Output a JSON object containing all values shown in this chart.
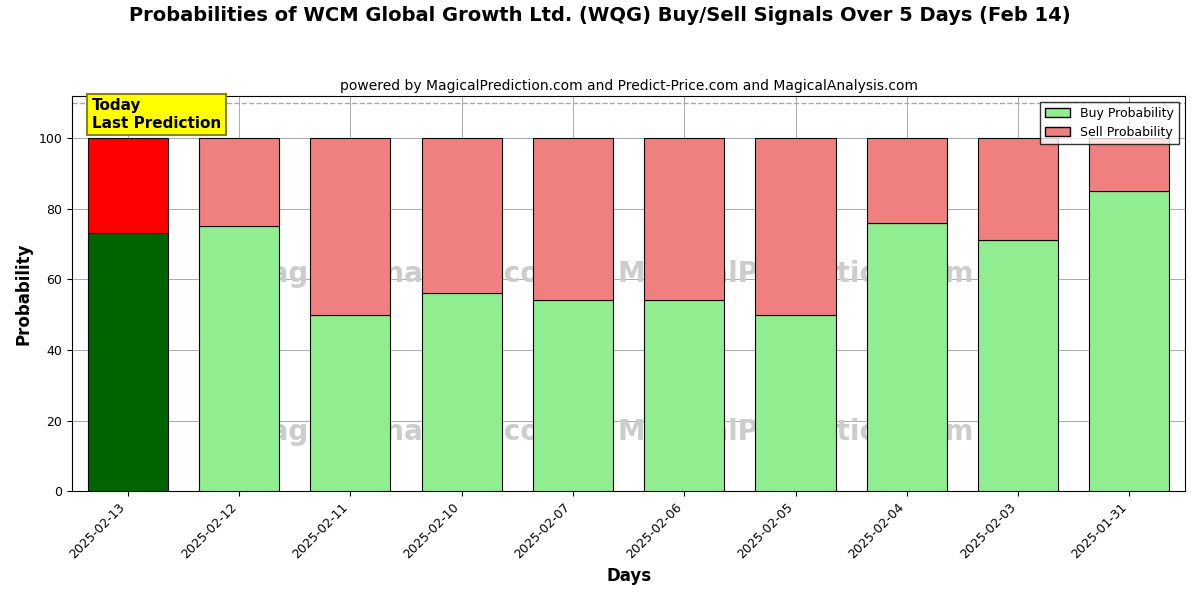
{
  "title": "Probabilities of WCM Global Growth Ltd. (WQG) Buy/Sell Signals Over 5 Days (Feb 14)",
  "subtitle": "powered by MagicalPrediction.com and Predict-Price.com and MagicalAnalysis.com",
  "xlabel": "Days",
  "ylabel": "Probability",
  "ylim": [
    0,
    112
  ],
  "yticks": [
    0,
    20,
    40,
    60,
    80,
    100
  ],
  "dashed_line_y": 110,
  "categories": [
    "2025-02-13",
    "2025-02-12",
    "2025-02-11",
    "2025-02-10",
    "2025-02-07",
    "2025-02-06",
    "2025-02-05",
    "2025-02-04",
    "2025-02-03",
    "2025-01-31"
  ],
  "buy_values": [
    73,
    75,
    50,
    56,
    54,
    54,
    50,
    76,
    71,
    85
  ],
  "sell_values": [
    27,
    25,
    50,
    44,
    46,
    46,
    50,
    24,
    29,
    15
  ],
  "today_bar_index": 0,
  "buy_color_today": "#006400",
  "sell_color_today": "#FF0000",
  "buy_color_normal": "#90EE90",
  "sell_color_normal": "#F08080",
  "bar_edge_color": "#000000",
  "bar_edge_width": 0.8,
  "legend_buy_label": "Buy Probability",
  "legend_sell_label": "Sell Probability",
  "annotation_text": "Today\nLast Prediction",
  "annotation_bg_color": "#FFFF00",
  "annotation_fontsize": 11,
  "title_fontsize": 14,
  "subtitle_fontsize": 10,
  "axis_label_fontsize": 12,
  "tick_fontsize": 9,
  "background_color": "#FFFFFF",
  "grid_color": "#AAAAAA",
  "watermark_color_hex": "#CCCCCC",
  "watermark_fontsize": 20,
  "bar_width": 0.72
}
